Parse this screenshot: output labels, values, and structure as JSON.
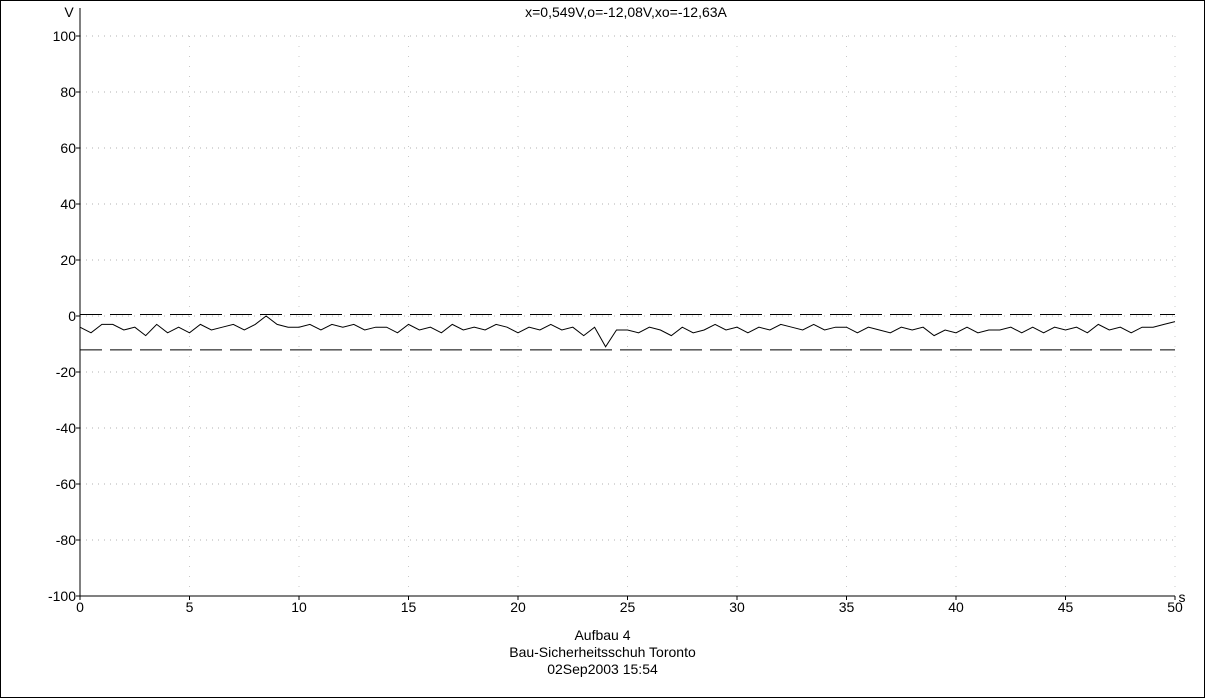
{
  "header": {
    "readout": "x=0,549V,o=-12,08V,xo=-12,63A"
  },
  "footer": {
    "line1": "Aufbau 4",
    "line2": "Bau-Sicherheitsschuh Toronto",
    "line3": "02Sep2003  15:54"
  },
  "chart_data": {
    "type": "line",
    "title": "",
    "xlabel": "s",
    "ylabel": "V",
    "xlim": [
      0,
      50
    ],
    "ylim": [
      -100,
      100
    ],
    "x_ticks": [
      0,
      5,
      10,
      15,
      20,
      25,
      30,
      35,
      40,
      45,
      50
    ],
    "x_tick_labels": [
      "0",
      "5",
      "10",
      "15",
      "20",
      "25",
      "30",
      "35",
      "40",
      "45",
      "50"
    ],
    "y_ticks": [
      100,
      80,
      60,
      40,
      20,
      0,
      -20,
      -40,
      -60,
      -80,
      -100
    ],
    "y_tick_labels": [
      "100",
      "80",
      "60",
      "40",
      "20",
      "0",
      "-20",
      "-40",
      "-60",
      "-80",
      "-100"
    ],
    "grid": "dotted, sparse",
    "reference_lines": [
      {
        "y": 0.55,
        "style": "dashed"
      },
      {
        "y": -12.08,
        "style": "dashed"
      }
    ],
    "series": [
      {
        "x": [
          0,
          0.5,
          1,
          1.5,
          2,
          2.5,
          3,
          3.5,
          4,
          4.5,
          5,
          5.5,
          6,
          6.5,
          7,
          7.5,
          8,
          8.5,
          9,
          9.5,
          10,
          10.5,
          11,
          11.5,
          12,
          12.5,
          13,
          13.5,
          14,
          14.5,
          15,
          15.5,
          16,
          16.5,
          17,
          17.5,
          18,
          18.5,
          19,
          19.5,
          20,
          20.5,
          21,
          21.5,
          22,
          22.5,
          23,
          23.5,
          24,
          24.5,
          25,
          25.5,
          26,
          26.5,
          27,
          27.5,
          28,
          28.5,
          29,
          29.5,
          30,
          30.5,
          31,
          31.5,
          32,
          32.5,
          33,
          33.5,
          34,
          34.5,
          35,
          35.5,
          36,
          36.5,
          37,
          37.5,
          38,
          38.5,
          39,
          39.5,
          40,
          40.5,
          41,
          41.5,
          42,
          42.5,
          43,
          43.5,
          44,
          44.5,
          45,
          45.5,
          46,
          46.5,
          47,
          47.5,
          48,
          48.5,
          49,
          49.5,
          50
        ],
        "y": [
          -4,
          -6,
          -3,
          -3,
          -5,
          -4,
          -7,
          -3,
          -6,
          -4,
          -6,
          -3,
          -5,
          -4,
          -3,
          -5,
          -3,
          0,
          -3,
          -4,
          -4,
          -3,
          -5,
          -3,
          -4,
          -3,
          -5,
          -4,
          -4,
          -6,
          -3,
          -5,
          -4,
          -6,
          -3,
          -5,
          -4,
          -5,
          -3,
          -4,
          -6,
          -4,
          -5,
          -3,
          -5,
          -4,
          -7,
          -4,
          -11,
          -5,
          -5,
          -6,
          -4,
          -5,
          -7,
          -4,
          -6,
          -5,
          -3,
          -5,
          -4,
          -6,
          -4,
          -5,
          -3,
          -4,
          -5,
          -3,
          -5,
          -4,
          -4,
          -6,
          -4,
          -5,
          -6,
          -4,
          -5,
          -4,
          -7,
          -5,
          -6,
          -4,
          -6,
          -5,
          -5,
          -4,
          -6,
          -4,
          -6,
          -4,
          -5,
          -4,
          -6,
          -3,
          -5,
          -4,
          -6,
          -4,
          -4,
          -3,
          -2
        ]
      }
    ]
  }
}
